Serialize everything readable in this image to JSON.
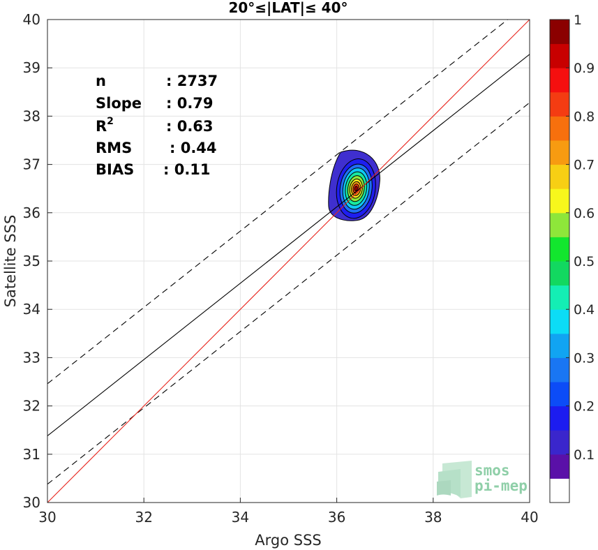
{
  "chart_data": {
    "type": "scatter",
    "title": "20°≤|LAT|≤ 40°",
    "xlabel": "Argo SSS",
    "ylabel": "Satellite SSS",
    "xlim": [
      30,
      40
    ],
    "ylim": [
      30,
      40
    ],
    "xticks": [
      30,
      32,
      34,
      36,
      38,
      40
    ],
    "yticks": [
      30,
      31,
      32,
      33,
      34,
      35,
      36,
      37,
      38,
      39,
      40
    ],
    "grid": true,
    "stats": [
      {
        "label": "n",
        "value": ": 2737"
      },
      {
        "label": "Slope",
        "value": ": 0.79"
      },
      {
        "label": "R",
        "sup": "2",
        "value": ": 0.63"
      },
      {
        "label": "RMS",
        "value": ": 0.44"
      },
      {
        "label": "BIAS",
        "value": ": 0.11"
      }
    ],
    "lines": {
      "identity": {
        "color": "#e8241c",
        "points": [
          [
            30,
            30
          ],
          [
            40,
            40
          ]
        ]
      },
      "fit": {
        "color": "#000000",
        "points": [
          [
            30,
            31.38
          ],
          [
            40,
            39.28
          ]
        ]
      },
      "upper_bound": {
        "color": "#000000",
        "dash": true,
        "points": [
          [
            30,
            32.46
          ],
          [
            40,
            40.36
          ]
        ]
      },
      "lower_bound": {
        "color": "#000000",
        "dash": true,
        "points": [
          [
            30,
            30.38
          ],
          [
            40,
            38.28
          ]
        ]
      }
    },
    "density": {
      "center": [
        36.4,
        36.5
      ],
      "levels": [
        {
          "level": 0.05,
          "rx": 0.58,
          "ry": 0.82,
          "color": "#3f2fcf"
        },
        {
          "level": 0.15,
          "rx": 0.4,
          "ry": 0.62,
          "color": "#1e1ef0"
        },
        {
          "level": 0.25,
          "rx": 0.33,
          "ry": 0.51,
          "color": "#1f6ff3"
        },
        {
          "level": 0.35,
          "rx": 0.27,
          "ry": 0.43,
          "color": "#0fc8f4"
        },
        {
          "level": 0.45,
          "rx": 0.22,
          "ry": 0.35,
          "color": "#18e8a0"
        },
        {
          "level": 0.55,
          "rx": 0.17,
          "ry": 0.27,
          "color": "#8ee63a"
        },
        {
          "level": 0.65,
          "rx": 0.13,
          "ry": 0.2,
          "color": "#f7e81a"
        },
        {
          "level": 0.75,
          "rx": 0.095,
          "ry": 0.145,
          "color": "#f79b11"
        },
        {
          "level": 0.85,
          "rx": 0.06,
          "ry": 0.095,
          "color": "#f33a12"
        },
        {
          "level": 0.95,
          "rx": 0.03,
          "ry": 0.05,
          "color": "#9c0000"
        }
      ]
    },
    "colorbar": {
      "min": 0,
      "max": 1,
      "ticks": [
        "0.1",
        "0.2",
        "0.3",
        "0.4",
        "0.5",
        "0.6",
        "0.7",
        "0.8",
        "0.9",
        "1"
      ],
      "bands": [
        "#ffffff",
        "#5a10a8",
        "#3a26cc",
        "#1c1cf0",
        "#0c4cf7",
        "#1976f3",
        "#11a4f2",
        "#0cdcf6",
        "#14eeb4",
        "#12d860",
        "#12e62e",
        "#8ee63a",
        "#f7f71c",
        "#f7cf14",
        "#f79b11",
        "#f7700d",
        "#f43c12",
        "#f50f0f",
        "#c80000",
        "#8b0000"
      ]
    }
  },
  "watermark": {
    "line1": "smos",
    "line2": "pi-mep"
  }
}
